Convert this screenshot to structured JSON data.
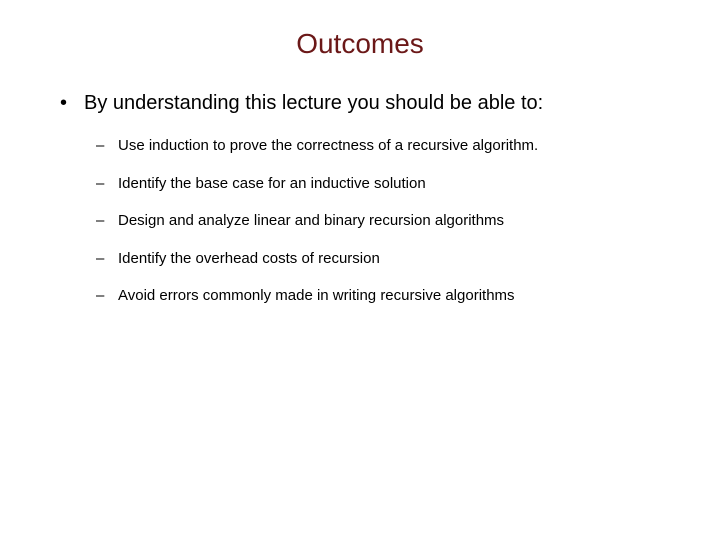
{
  "slide": {
    "title": "Outcomes",
    "title_color": "#6b1818",
    "title_fontsize": 28,
    "background_color": "#ffffff",
    "main_bullet": "By understanding this lecture you should be able to:",
    "main_bullet_fontsize": 20,
    "main_bullet_color": "#000000",
    "sub_bullets": [
      "Use induction to prove the correctness of a recursive algorithm.",
      "Identify the base case for an inductive solution",
      "Design and analyze linear and binary recursion algorithms",
      "Identify the overhead costs of recursion",
      "Avoid errors commonly made in writing recursive algorithms"
    ],
    "sub_bullet_fontsize": 15,
    "sub_bullet_color": "#000000"
  }
}
